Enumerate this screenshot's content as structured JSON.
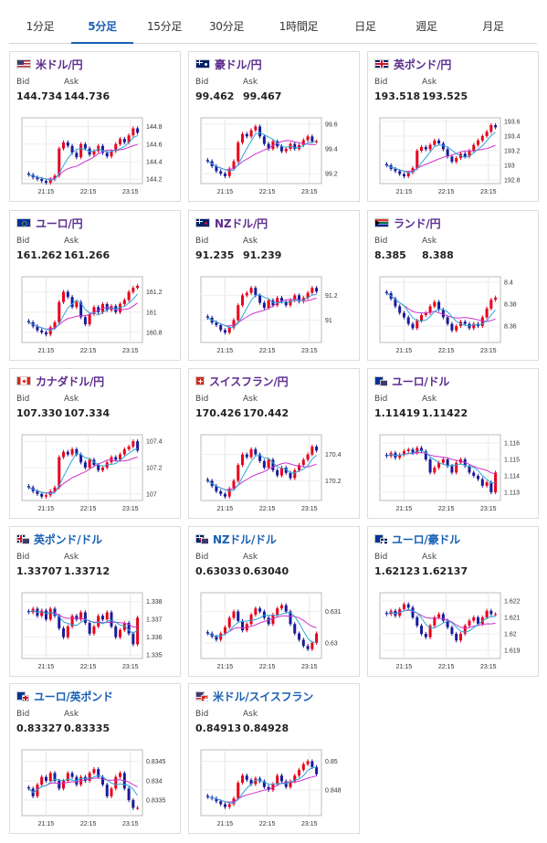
{
  "tabs": [
    {
      "label": "1分足",
      "active": false
    },
    {
      "label": "5分足",
      "active": true
    },
    {
      "label": "15分足",
      "active": false
    },
    {
      "label": "30分足",
      "active": false
    },
    {
      "label": "1時間足",
      "active": false
    },
    {
      "label": "日足",
      "active": false
    },
    {
      "label": "週足",
      "active": false
    },
    {
      "label": "月足",
      "active": false
    }
  ],
  "labels": {
    "bid": "Bid",
    "ask": "Ask"
  },
  "colors": {
    "up": "#e8001c",
    "down": "#1a1a9a",
    "ma_short": "#2aa8d8",
    "ma_long": "#cc33cc",
    "accent": "#1a5fb4",
    "pair_name": "#5b2c8e"
  },
  "x_ticks": [
    "21:15",
    "22:15",
    "23:15"
  ],
  "cards": [
    {
      "name": "米ドル/円",
      "flag": "us",
      "bid": "144.734",
      "ask": "144.736",
      "chart_data": {
        "type": "candlestick",
        "yticks": [
          "144.8",
          "144.6",
          "144.4",
          "144.2"
        ],
        "ylim": [
          144.15,
          144.9
        ],
        "closes": [
          144.25,
          144.22,
          144.2,
          144.18,
          144.16,
          144.2,
          144.24,
          144.55,
          144.62,
          144.58,
          144.5,
          144.45,
          144.6,
          144.55,
          144.48,
          144.52,
          144.58,
          144.5,
          144.46,
          144.52,
          144.6,
          144.66,
          144.62,
          144.7,
          144.78,
          144.73
        ]
      }
    },
    {
      "name": "豪ドル/円",
      "flag": "au",
      "bid": "99.462",
      "ask": "99.467",
      "chart_data": {
        "type": "candlestick",
        "yticks": [
          "99.6",
          "99.4",
          "99.2"
        ],
        "ylim": [
          99.12,
          99.65
        ],
        "closes": [
          99.3,
          99.26,
          99.22,
          99.2,
          99.18,
          99.24,
          99.3,
          99.45,
          99.52,
          99.5,
          99.55,
          99.58,
          99.5,
          99.44,
          99.4,
          99.46,
          99.42,
          99.38,
          99.4,
          99.44,
          99.4,
          99.43,
          99.47,
          99.5,
          99.46,
          99.46
        ]
      }
    },
    {
      "name": "英ポンド/円",
      "flag": "gb",
      "bid": "193.518",
      "ask": "193.525",
      "chart_data": {
        "type": "candlestick",
        "yticks": [
          "193.6",
          "193.4",
          "193.2",
          "193",
          "192.8"
        ],
        "ylim": [
          192.75,
          193.65
        ],
        "closes": [
          193.0,
          192.95,
          192.92,
          192.88,
          192.85,
          192.9,
          192.96,
          193.2,
          193.25,
          193.22,
          193.28,
          193.34,
          193.3,
          193.22,
          193.12,
          193.05,
          193.1,
          193.16,
          193.12,
          193.2,
          193.28,
          193.34,
          193.4,
          193.46,
          193.55,
          193.52
        ]
      }
    },
    {
      "name": "ユーロ/円",
      "flag": "eu",
      "bid": "161.262",
      "ask": "161.266",
      "chart_data": {
        "type": "candlestick",
        "yticks": [
          "161.2",
          "161",
          "160.8"
        ],
        "ylim": [
          160.7,
          161.35
        ],
        "closes": [
          160.9,
          160.86,
          160.82,
          160.8,
          160.78,
          160.85,
          160.9,
          161.1,
          161.2,
          161.15,
          161.05,
          161.1,
          160.95,
          160.88,
          160.98,
          161.05,
          161.0,
          161.08,
          161.02,
          161.06,
          161.0,
          161.08,
          161.12,
          161.2,
          161.24,
          161.26
        ]
      }
    },
    {
      "name": "NZドル/円",
      "flag": "nz",
      "bid": "91.235",
      "ask": "91.239",
      "chart_data": {
        "type": "candlestick",
        "yticks": [
          "91.2",
          "91"
        ],
        "ylim": [
          90.82,
          91.35
        ],
        "closes": [
          91.02,
          90.98,
          90.96,
          90.92,
          90.9,
          90.94,
          91.0,
          91.12,
          91.2,
          91.22,
          91.26,
          91.2,
          91.14,
          91.1,
          91.16,
          91.12,
          91.18,
          91.15,
          91.12,
          91.16,
          91.2,
          91.15,
          91.18,
          91.22,
          91.26,
          91.23
        ]
      }
    },
    {
      "name": "ランド/円",
      "flag": "za",
      "bid": "8.385",
      "ask": "8.388",
      "chart_data": {
        "type": "candlestick",
        "yticks": [
          "8.4",
          "8.38",
          "8.36"
        ],
        "ylim": [
          8.345,
          8.405
        ],
        "closes": [
          8.39,
          8.385,
          8.378,
          8.372,
          8.368,
          8.362,
          8.358,
          8.365,
          8.37,
          8.372,
          8.378,
          8.382,
          8.375,
          8.368,
          8.362,
          8.356,
          8.36,
          8.364,
          8.362,
          8.358,
          8.362,
          8.36,
          8.368,
          8.376,
          8.384,
          8.386
        ]
      }
    },
    {
      "name": "カナダドル/円",
      "flag": "ca",
      "bid": "107.330",
      "ask": "107.334",
      "chart_data": {
        "type": "candlestick",
        "yticks": [
          "107.4",
          "107.2",
          "107"
        ],
        "ylim": [
          106.95,
          107.45
        ],
        "closes": [
          107.05,
          107.02,
          107.0,
          106.98,
          106.99,
          107.02,
          107.05,
          107.28,
          107.32,
          107.3,
          107.34,
          107.3,
          107.24,
          107.2,
          107.26,
          107.22,
          107.18,
          107.2,
          107.24,
          107.28,
          107.26,
          107.3,
          107.34,
          107.36,
          107.4,
          107.33
        ]
      }
    },
    {
      "name": "スイスフラン/円",
      "flag": "ch",
      "bid": "170.426",
      "ask": "170.442",
      "chart_data": {
        "type": "candlestick",
        "yticks": [
          "170.4",
          "170.2"
        ],
        "ylim": [
          170.05,
          170.55
        ],
        "closes": [
          170.2,
          170.16,
          170.12,
          170.1,
          170.08,
          170.14,
          170.2,
          170.32,
          170.4,
          170.38,
          170.44,
          170.4,
          170.35,
          170.3,
          170.36,
          170.28,
          170.24,
          170.3,
          170.26,
          170.22,
          170.28,
          170.32,
          170.36,
          170.4,
          170.46,
          170.43
        ]
      }
    },
    {
      "name": "ユーロ/ドル",
      "flag": "eu-us",
      "bid": "1.11419",
      "ask": "1.11422",
      "chart_data": {
        "type": "candlestick",
        "yticks": [
          "1.116",
          "1.115",
          "1.114",
          "1.113"
        ],
        "ylim": [
          1.1125,
          1.1165
        ],
        "closes": [
          1.1152,
          1.1154,
          1.1151,
          1.1153,
          1.1155,
          1.1156,
          1.1154,
          1.1157,
          1.1155,
          1.115,
          1.1142,
          1.1145,
          1.1148,
          1.115,
          1.1146,
          1.1142,
          1.1148,
          1.115,
          1.1146,
          1.1142,
          1.114,
          1.1138,
          1.1134,
          1.1136,
          1.113,
          1.1142
        ]
      }
    },
    {
      "name": "英ポンド/ドル",
      "flag": "gb-us",
      "bid": "1.33707",
      "ask": "1.33712",
      "chart_data": {
        "type": "candlestick",
        "yticks": [
          "1.338",
          "1.337",
          "1.336",
          "1.335"
        ],
        "ylim": [
          1.3348,
          1.3385
        ],
        "closes": [
          1.3374,
          1.3376,
          1.3372,
          1.3375,
          1.337,
          1.3376,
          1.3372,
          1.3365,
          1.336,
          1.3366,
          1.3372,
          1.337,
          1.3374,
          1.3368,
          1.3362,
          1.3366,
          1.3372,
          1.337,
          1.3374,
          1.3366,
          1.336,
          1.3364,
          1.3368,
          1.3362,
          1.3356,
          1.3371
        ]
      }
    },
    {
      "name": "NZドル/ドル",
      "flag": "nz-us",
      "bid": "0.63033",
      "ask": "0.63040",
      "chart_data": {
        "type": "candlestick",
        "yticks": [
          "0.631",
          "0.63"
        ],
        "ylim": [
          0.6295,
          0.6316
        ],
        "closes": [
          0.6303,
          0.6302,
          0.6301,
          0.6303,
          0.6305,
          0.6308,
          0.631,
          0.6307,
          0.6304,
          0.6306,
          0.6309,
          0.6311,
          0.631,
          0.6308,
          0.6306,
          0.6309,
          0.6311,
          0.6312,
          0.631,
          0.6306,
          0.6303,
          0.6301,
          0.6299,
          0.6298,
          0.63,
          0.6303
        ]
      }
    },
    {
      "name": "ユーロ/豪ドル",
      "flag": "eu-au",
      "bid": "1.62123",
      "ask": "1.62137",
      "chart_data": {
        "type": "candlestick",
        "yticks": [
          "1.622",
          "1.621",
          "1.62",
          "1.619"
        ],
        "ylim": [
          1.6185,
          1.6225
        ],
        "closes": [
          1.6212,
          1.6214,
          1.6211,
          1.6215,
          1.6218,
          1.6216,
          1.621,
          1.6205,
          1.62,
          1.6198,
          1.6205,
          1.621,
          1.6212,
          1.6208,
          1.6204,
          1.62,
          1.6196,
          1.62,
          1.6205,
          1.6208,
          1.621,
          1.6206,
          1.621,
          1.6214,
          1.6212,
          1.6212
        ]
      }
    },
    {
      "name": "ユーロ/英ポンド",
      "flag": "eu-gb",
      "bid": "0.83327",
      "ask": "0.83335",
      "chart_data": {
        "type": "candlestick",
        "yticks": [
          "0.8345",
          "0.834",
          "0.8335"
        ],
        "ylim": [
          0.8331,
          0.8348
        ],
        "closes": [
          0.8338,
          0.8336,
          0.8339,
          0.8341,
          0.834,
          0.8342,
          0.834,
          0.8338,
          0.834,
          0.8342,
          0.8341,
          0.8339,
          0.8341,
          0.834,
          0.8342,
          0.8343,
          0.8341,
          0.8339,
          0.8336,
          0.8338,
          0.8341,
          0.8342,
          0.8338,
          0.8335,
          0.8333,
          0.8333
        ]
      }
    },
    {
      "name": "米ドル/スイスフラン",
      "flag": "us-ch",
      "bid": "0.84913",
      "ask": "0.84928",
      "chart_data": {
        "type": "candlestick",
        "yticks": [
          "0.85",
          "0.848"
        ],
        "ylim": [
          0.8462,
          0.8508
        ],
        "closes": [
          0.8475,
          0.8474,
          0.8472,
          0.847,
          0.8468,
          0.847,
          0.8474,
          0.8485,
          0.849,
          0.8487,
          0.8484,
          0.8488,
          0.8486,
          0.8482,
          0.848,
          0.8484,
          0.849,
          0.8486,
          0.8482,
          0.8486,
          0.849,
          0.8494,
          0.8498,
          0.85,
          0.8496,
          0.8491
        ]
      }
    }
  ]
}
